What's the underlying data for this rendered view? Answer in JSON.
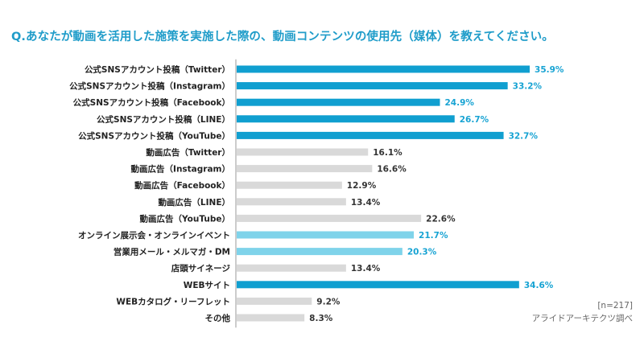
{
  "question": "Q.あなたが動画を活用した施策を実施した際の、動画コンテンツの使用先（媒体）を教えてください。",
  "sample_note": "[n=217]",
  "source_note": "アライドアーキテクツ調べ",
  "colors": {
    "highlight": "#109fd0",
    "highlight_light": "#7fd3ea",
    "neutral": "#d9d9d9",
    "highlight_label": "#17a3d3",
    "neutral_label": "#333333",
    "axis": "#999999"
  },
  "chart_data": {
    "type": "bar",
    "orientation": "horizontal",
    "title": "Q.あなたが動画を活用した施策を実施した際の、動画コンテンツの使用先（媒体）を教えてください。",
    "xlabel": "",
    "ylabel": "",
    "grid": false,
    "legend": "none",
    "xlim": [
      0,
      40
    ],
    "unit": "%",
    "categories": [
      "公式SNSアカウント投稿（Twitter）",
      "公式SNSアカウント投稿（Instagram）",
      "公式SNSアカウント投稿（Facebook）",
      "公式SNSアカウント投稿（LINE）",
      "公式SNSアカウント投稿（YouTube）",
      "動画広告（Twitter）",
      "動画広告（Instagram）",
      "動画広告（Facebook）",
      "動画広告（LINE）",
      "動画広告（YouTube）",
      "オンライン展示会・オンラインイベント",
      "営業用メール・メルマガ・DM",
      "店頭サイネージ",
      "WEBサイト",
      "WEBカタログ・リーフレット",
      "その他"
    ],
    "values": [
      35.9,
      33.2,
      24.9,
      26.7,
      32.7,
      16.1,
      16.6,
      12.9,
      13.4,
      22.6,
      21.7,
      20.3,
      13.4,
      34.6,
      9.2,
      8.3
    ],
    "value_labels": [
      "35.9%",
      "33.2%",
      "24.9%",
      "26.7%",
      "32.7%",
      "16.1%",
      "16.6%",
      "12.9%",
      "13.4%",
      "22.6%",
      "21.7%",
      "20.3%",
      "13.4%",
      "34.6%",
      "9.2%",
      "8.3%"
    ],
    "bar_styles": [
      "highlight",
      "highlight",
      "highlight",
      "highlight",
      "highlight",
      "neutral",
      "neutral",
      "neutral",
      "neutral",
      "neutral",
      "highlight_light",
      "highlight_light",
      "neutral",
      "highlight",
      "neutral",
      "neutral"
    ]
  }
}
